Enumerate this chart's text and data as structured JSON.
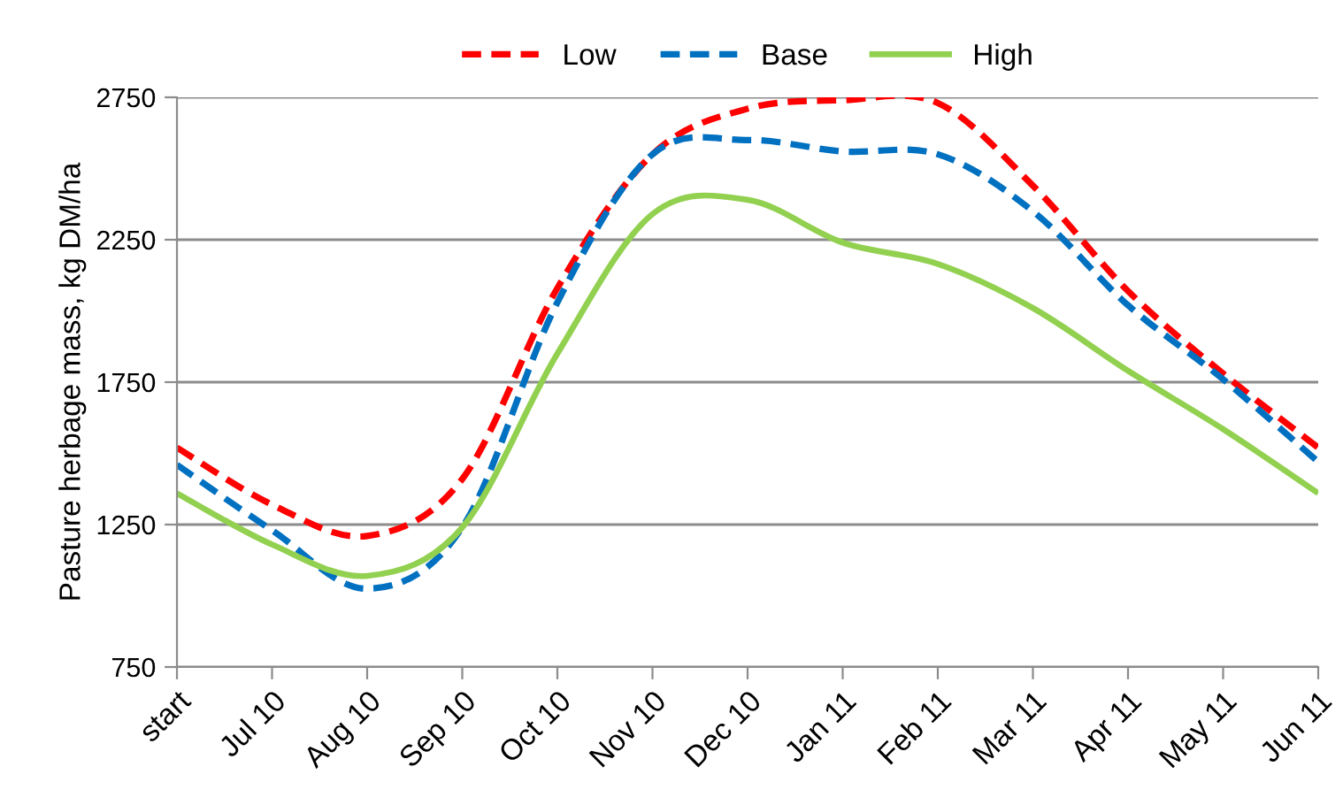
{
  "chart_data": {
    "type": "line",
    "ylabel": "Pasture herbage mass, kg DM/ha",
    "categories": [
      "start",
      "Jul 10",
      "Aug 10",
      "Sep 10",
      "Oct 10",
      "Nov 10",
      "Dec 10",
      "Jan 11",
      "Feb 11",
      "Mar 11",
      "Apr 11",
      "May 11",
      "Jun 11"
    ],
    "series": [
      {
        "name": "Low",
        "color": "#ff0000",
        "line_style": "dashed",
        "values": [
          1520,
          1320,
          1210,
          1410,
          2080,
          2550,
          2710,
          2740,
          2730,
          2440,
          2070,
          1780,
          1520
        ]
      },
      {
        "name": "Base",
        "color": "#0070c0",
        "line_style": "dashed",
        "values": [
          1460,
          1230,
          1025,
          1240,
          2030,
          2550,
          2600,
          2560,
          2550,
          2350,
          2020,
          1760,
          1470
        ]
      },
      {
        "name": "High",
        "color": "#92d050",
        "line_style": "solid",
        "values": [
          1360,
          1180,
          1070,
          1240,
          1850,
          2340,
          2390,
          2240,
          2165,
          2010,
          1790,
          1585,
          1360
        ]
      }
    ],
    "ylim": [
      750,
      2750
    ],
    "yticks": [
      750,
      1250,
      1750,
      2250,
      2750
    ],
    "grid": "y",
    "legend": "top",
    "marker": "none"
  }
}
